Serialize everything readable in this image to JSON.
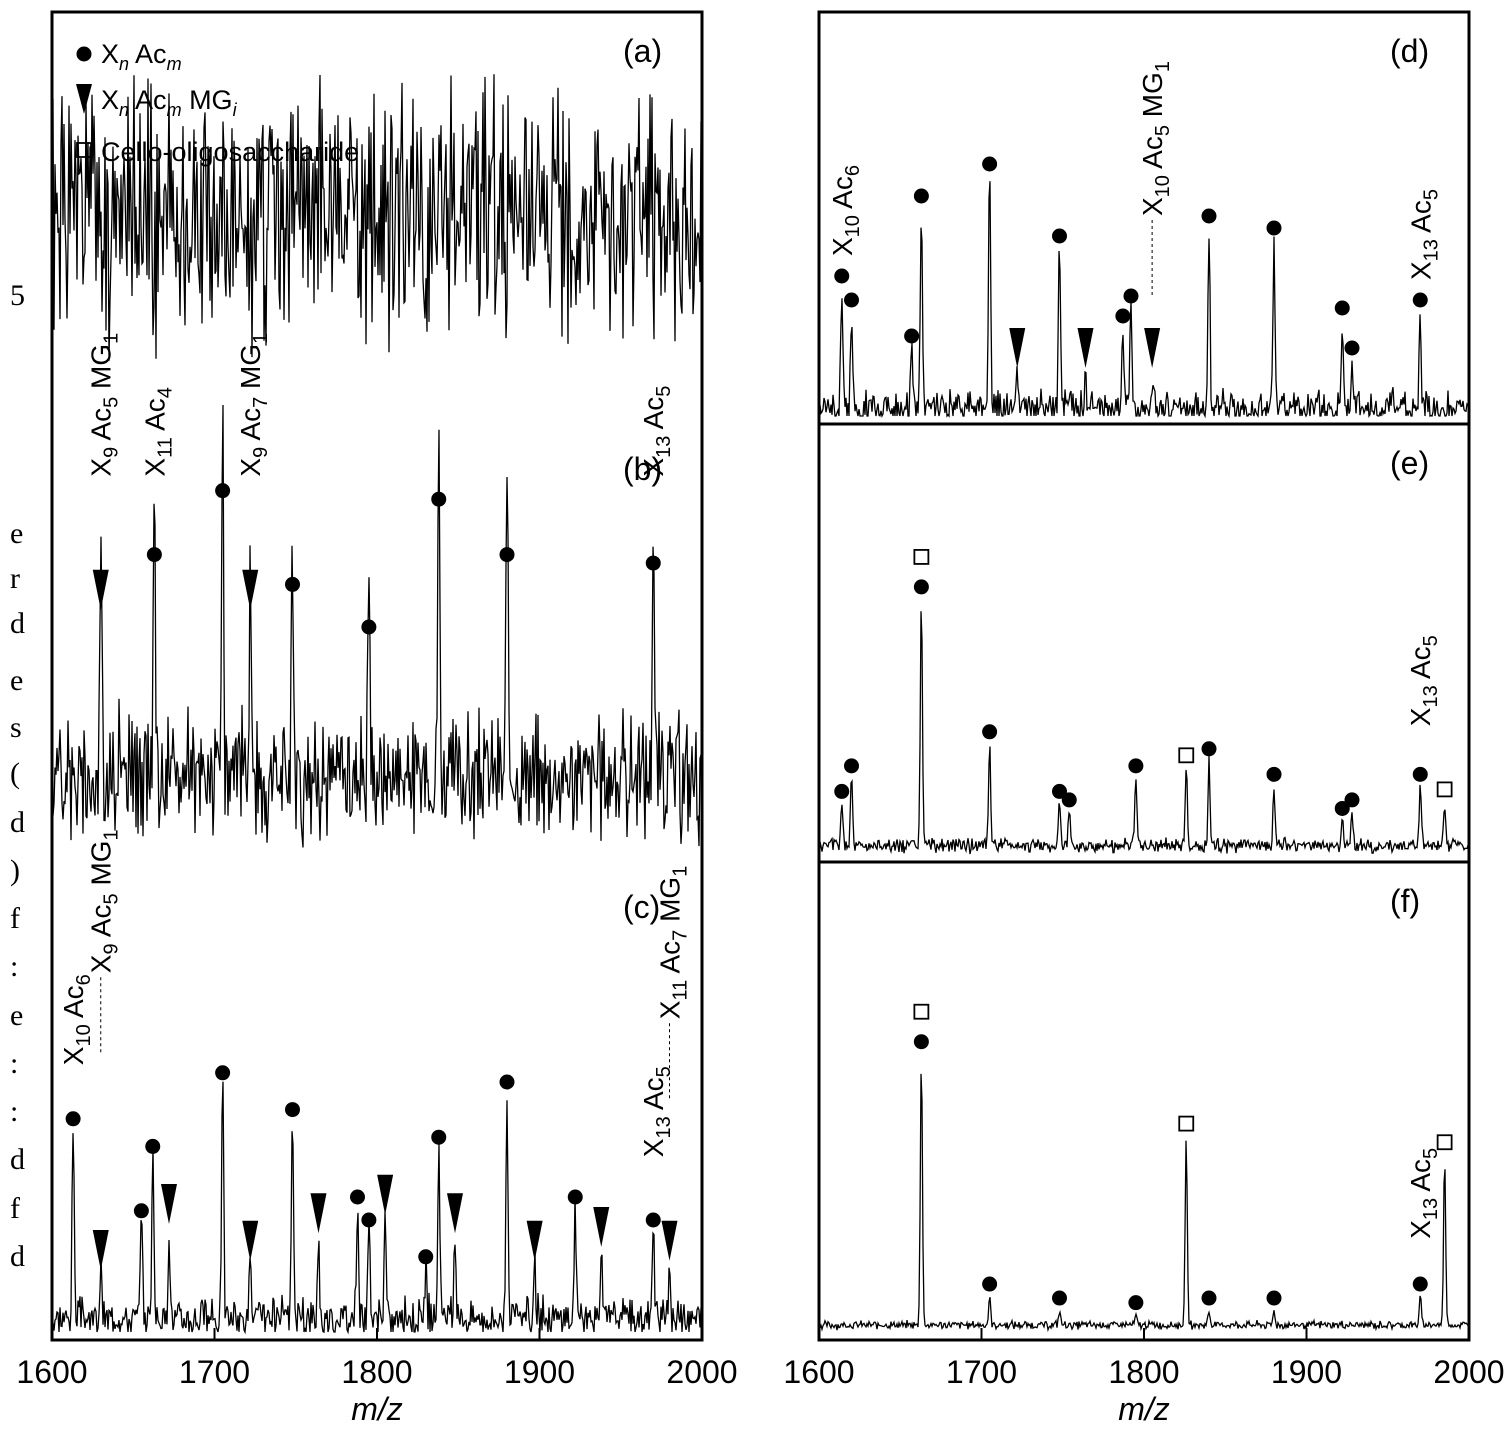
{
  "colors": {
    "ink": "#000000",
    "background": "#ffffff"
  },
  "left_margin_text": [
    "5",
    "e",
    "r",
    "d",
    "e",
    "s",
    "(",
    "d",
    ")",
    "f",
    ":",
    "e",
    ":",
    ":",
    "d",
    "f",
    "d"
  ],
  "legend": [
    {
      "symbol": "circle",
      "base": "X",
      "sub1": "n",
      "mid": " Ac",
      "sub2": "m",
      "tail": "",
      "sub3": ""
    },
    {
      "symbol": "triangle-down",
      "base": "X",
      "sub1": "n",
      "mid": " Ac",
      "sub2": "m",
      "tail": " MG",
      "sub3": "i"
    },
    {
      "symbol": "square-open",
      "text": "Cello-oligosaccharide"
    }
  ],
  "chart_data": [
    {
      "type": "line",
      "panel": "(a)",
      "xlim": [
        1600,
        2000
      ],
      "xticks": [],
      "xlabel": "",
      "noise_seed": 1,
      "noise_level": 0.28,
      "baseline": 0.5,
      "peaks": [],
      "markers": [],
      "labels": []
    },
    {
      "type": "line",
      "panel": "(b)",
      "xlim": [
        1600,
        2000
      ],
      "xticks": [],
      "xlabel": "",
      "noise_seed": 2,
      "noise_level": 0.13,
      "baseline": 0.2,
      "peaks": [
        {
          "x": 1630,
          "h": 0.55
        },
        {
          "x": 1663,
          "h": 0.67
        },
        {
          "x": 1705,
          "h": 0.82
        },
        {
          "x": 1722,
          "h": 0.55
        },
        {
          "x": 1748,
          "h": 0.6
        },
        {
          "x": 1795,
          "h": 0.5
        },
        {
          "x": 1838,
          "h": 0.8
        },
        {
          "x": 1880,
          "h": 0.67
        },
        {
          "x": 1970,
          "h": 0.65
        }
      ],
      "markers": [
        {
          "x": 1663,
          "h": 0.67,
          "type": "circle"
        },
        {
          "x": 1705,
          "h": 0.82,
          "type": "circle"
        },
        {
          "x": 1748,
          "h": 0.6,
          "type": "circle"
        },
        {
          "x": 1795,
          "h": 0.5,
          "type": "circle"
        },
        {
          "x": 1838,
          "h": 0.8,
          "type": "circle"
        },
        {
          "x": 1880,
          "h": 0.67,
          "type": "circle"
        },
        {
          "x": 1970,
          "h": 0.65,
          "type": "circle"
        },
        {
          "x": 1630,
          "h": 0.55,
          "type": "triangle"
        },
        {
          "x": 1722,
          "h": 0.55,
          "type": "triangle"
        }
      ],
      "labels": [
        {
          "x": 1630,
          "h": 0.9,
          "base": "X",
          "s1": "9",
          "mid": " Ac",
          "s2": "5",
          "tail": " MG",
          "s3": "1",
          "line": false
        },
        {
          "x": 1663,
          "h": 0.9,
          "base": "X",
          "s1": "11",
          "mid": " Ac",
          "s2": "4",
          "tail": "",
          "s3": "",
          "line": false
        },
        {
          "x": 1722,
          "h": 0.9,
          "base": "X",
          "s1": "9",
          "mid": " Ac",
          "s2": "7",
          "tail": " MG",
          "s3": "1",
          "line": false
        },
        {
          "x": 1970,
          "h": 0.9,
          "base": "X",
          "s1": "13",
          "mid": " Ac",
          "s2": "5",
          "tail": "",
          "s3": "",
          "line": false
        }
      ]
    },
    {
      "type": "line",
      "panel": "(c)",
      "xlim": [
        1600,
        2000
      ],
      "xticks": [
        1600,
        1700,
        1800,
        1900,
        2000
      ],
      "xlabel": "m/z",
      "noise_seed": 3,
      "noise_level": 0.04,
      "baseline": 0.03,
      "peaks": [
        {
          "x": 1613,
          "h": 0.42
        },
        {
          "x": 1630,
          "h": 0.1
        },
        {
          "x": 1655,
          "h": 0.22
        },
        {
          "x": 1662,
          "h": 0.36
        },
        {
          "x": 1672,
          "h": 0.2
        },
        {
          "x": 1705,
          "h": 0.52
        },
        {
          "x": 1722,
          "h": 0.12
        },
        {
          "x": 1748,
          "h": 0.44
        },
        {
          "x": 1764,
          "h": 0.18
        },
        {
          "x": 1788,
          "h": 0.25
        },
        {
          "x": 1795,
          "h": 0.2
        },
        {
          "x": 1805,
          "h": 0.22
        },
        {
          "x": 1830,
          "h": 0.12
        },
        {
          "x": 1838,
          "h": 0.38
        },
        {
          "x": 1848,
          "h": 0.18
        },
        {
          "x": 1880,
          "h": 0.5
        },
        {
          "x": 1897,
          "h": 0.12
        },
        {
          "x": 1922,
          "h": 0.25
        },
        {
          "x": 1938,
          "h": 0.15
        },
        {
          "x": 1970,
          "h": 0.2
        },
        {
          "x": 1980,
          "h": 0.12
        }
      ],
      "markers": [
        {
          "x": 1613,
          "h": 0.42,
          "type": "circle"
        },
        {
          "x": 1655,
          "h": 0.22,
          "type": "circle"
        },
        {
          "x": 1662,
          "h": 0.36,
          "type": "circle"
        },
        {
          "x": 1705,
          "h": 0.52,
          "type": "circle"
        },
        {
          "x": 1748,
          "h": 0.44,
          "type": "circle"
        },
        {
          "x": 1788,
          "h": 0.25,
          "type": "circle"
        },
        {
          "x": 1795,
          "h": 0.2,
          "type": "circle"
        },
        {
          "x": 1830,
          "h": 0.12,
          "type": "circle"
        },
        {
          "x": 1838,
          "h": 0.38,
          "type": "circle"
        },
        {
          "x": 1880,
          "h": 0.5,
          "type": "circle"
        },
        {
          "x": 1922,
          "h": 0.25,
          "type": "circle"
        },
        {
          "x": 1970,
          "h": 0.2,
          "type": "circle"
        },
        {
          "x": 1630,
          "h": 0.1,
          "type": "triangle"
        },
        {
          "x": 1672,
          "h": 0.2,
          "type": "triangle"
        },
        {
          "x": 1722,
          "h": 0.12,
          "type": "triangle"
        },
        {
          "x": 1764,
          "h": 0.18,
          "type": "triangle"
        },
        {
          "x": 1805,
          "h": 0.22,
          "type": "triangle"
        },
        {
          "x": 1848,
          "h": 0.18,
          "type": "triangle"
        },
        {
          "x": 1897,
          "h": 0.12,
          "type": "triangle"
        },
        {
          "x": 1938,
          "h": 0.15,
          "type": "triangle"
        },
        {
          "x": 1980,
          "h": 0.12,
          "type": "triangle"
        }
      ],
      "labels": [
        {
          "x": 1613,
          "h": 0.58,
          "base": "X",
          "s1": "10",
          "mid": " Ac",
          "s2": "6",
          "tail": "",
          "s3": "",
          "line": false
        },
        {
          "x": 1630,
          "h": 0.78,
          "base": "X",
          "s1": "9",
          "mid": " Ac",
          "s2": "5",
          "tail": " MG",
          "s3": "1",
          "line": true
        },
        {
          "x": 1970,
          "h": 0.38,
          "base": "X",
          "s1": "13",
          "mid": " Ac",
          "s2": "5",
          "tail": "",
          "s3": "",
          "line": false
        },
        {
          "x": 1980,
          "h": 0.68,
          "base": "X",
          "s1": "11",
          "mid": " Ac",
          "s2": "7",
          "tail": " MG",
          "s3": "1",
          "line": true
        }
      ]
    },
    {
      "type": "line",
      "panel": "(d)",
      "xlim": [
        1600,
        2000
      ],
      "xticks": [],
      "xlabel": "",
      "noise_seed": 4,
      "noise_level": 0.04,
      "baseline": 0.02,
      "peaks": [
        {
          "x": 1614,
          "h": 0.3
        },
        {
          "x": 1620,
          "h": 0.24
        },
        {
          "x": 1657,
          "h": 0.15
        },
        {
          "x": 1663,
          "h": 0.5
        },
        {
          "x": 1705,
          "h": 0.58
        },
        {
          "x": 1722,
          "h": 0.08
        },
        {
          "x": 1748,
          "h": 0.4
        },
        {
          "x": 1764,
          "h": 0.08
        },
        {
          "x": 1787,
          "h": 0.2
        },
        {
          "x": 1792,
          "h": 0.25
        },
        {
          "x": 1805,
          "h": 0.08
        },
        {
          "x": 1840,
          "h": 0.45
        },
        {
          "x": 1880,
          "h": 0.42
        },
        {
          "x": 1922,
          "h": 0.22
        },
        {
          "x": 1928,
          "h": 0.12
        },
        {
          "x": 1970,
          "h": 0.24
        }
      ],
      "markers": [
        {
          "x": 1614,
          "h": 0.3,
          "type": "circle"
        },
        {
          "x": 1620,
          "h": 0.24,
          "type": "circle"
        },
        {
          "x": 1657,
          "h": 0.15,
          "type": "circle"
        },
        {
          "x": 1663,
          "h": 0.5,
          "type": "circle"
        },
        {
          "x": 1705,
          "h": 0.58,
          "type": "circle"
        },
        {
          "x": 1748,
          "h": 0.4,
          "type": "circle"
        },
        {
          "x": 1787,
          "h": 0.2,
          "type": "circle"
        },
        {
          "x": 1792,
          "h": 0.25,
          "type": "circle"
        },
        {
          "x": 1840,
          "h": 0.45,
          "type": "circle"
        },
        {
          "x": 1880,
          "h": 0.42,
          "type": "circle"
        },
        {
          "x": 1922,
          "h": 0.22,
          "type": "circle"
        },
        {
          "x": 1928,
          "h": 0.12,
          "type": "circle"
        },
        {
          "x": 1970,
          "h": 0.24,
          "type": "circle"
        },
        {
          "x": 1722,
          "h": 0.08,
          "type": "triangle"
        },
        {
          "x": 1764,
          "h": 0.08,
          "type": "triangle"
        },
        {
          "x": 1805,
          "h": 0.08,
          "type": "triangle"
        }
      ],
      "labels": [
        {
          "x": 1614,
          "h": 0.4,
          "base": "X",
          "s1": "10",
          "mid": " Ac",
          "s2": "6",
          "tail": "",
          "s3": "",
          "line": false
        },
        {
          "x": 1805,
          "h": 0.5,
          "base": "X",
          "s1": "10",
          "mid": " Ac",
          "s2": "5",
          "tail": " MG",
          "s3": "1",
          "line": true
        },
        {
          "x": 1970,
          "h": 0.34,
          "base": "X",
          "s1": "13",
          "mid": " Ac",
          "s2": "5",
          "tail": "",
          "s3": "",
          "line": false
        }
      ]
    },
    {
      "type": "line",
      "panel": "(e)",
      "xlim": [
        1600,
        2000
      ],
      "xticks": [],
      "xlabel": "",
      "noise_seed": 5,
      "noise_level": 0.015,
      "baseline": 0.02,
      "peaks": [
        {
          "x": 1614,
          "h": 0.1
        },
        {
          "x": 1620,
          "h": 0.16
        },
        {
          "x": 1663,
          "h": 0.58
        },
        {
          "x": 1705,
          "h": 0.24
        },
        {
          "x": 1748,
          "h": 0.1
        },
        {
          "x": 1754,
          "h": 0.08
        },
        {
          "x": 1795,
          "h": 0.16
        },
        {
          "x": 1826,
          "h": 0.18
        },
        {
          "x": 1840,
          "h": 0.2
        },
        {
          "x": 1880,
          "h": 0.14
        },
        {
          "x": 1922,
          "h": 0.06
        },
        {
          "x": 1928,
          "h": 0.08
        },
        {
          "x": 1970,
          "h": 0.14
        },
        {
          "x": 1985,
          "h": 0.1
        }
      ],
      "markers": [
        {
          "x": 1614,
          "h": 0.1,
          "type": "circle"
        },
        {
          "x": 1620,
          "h": 0.16,
          "type": "circle"
        },
        {
          "x": 1663,
          "h": 0.58,
          "type": "circle"
        },
        {
          "x": 1705,
          "h": 0.24,
          "type": "circle"
        },
        {
          "x": 1748,
          "h": 0.1,
          "type": "circle"
        },
        {
          "x": 1754,
          "h": 0.08,
          "type": "circle"
        },
        {
          "x": 1795,
          "h": 0.16,
          "type": "circle"
        },
        {
          "x": 1840,
          "h": 0.2,
          "type": "circle"
        },
        {
          "x": 1880,
          "h": 0.14,
          "type": "circle"
        },
        {
          "x": 1922,
          "h": 0.06,
          "type": "circle"
        },
        {
          "x": 1928,
          "h": 0.08,
          "type": "circle"
        },
        {
          "x": 1970,
          "h": 0.14,
          "type": "circle"
        },
        {
          "x": 1663,
          "h": 0.58,
          "type": "square"
        },
        {
          "x": 1826,
          "h": 0.18,
          "type": "square"
        },
        {
          "x": 1985,
          "h": 0.1,
          "type": "square"
        }
      ],
      "labels": [
        {
          "x": 1970,
          "h": 0.3,
          "base": "X",
          "s1": "13",
          "mid": " Ac",
          "s2": "5",
          "tail": "",
          "s3": "",
          "line": false
        }
      ]
    },
    {
      "type": "line",
      "panel": "(f)",
      "xlim": [
        1600,
        2000
      ],
      "xticks": [
        1600,
        1700,
        1800,
        1900,
        2000
      ],
      "xlabel": "m/z",
      "noise_seed": 6,
      "noise_level": 0.008,
      "baseline": 0.015,
      "peaks": [
        {
          "x": 1663,
          "h": 0.58
        },
        {
          "x": 1705,
          "h": 0.06
        },
        {
          "x": 1748,
          "h": 0.03
        },
        {
          "x": 1795,
          "h": 0.02
        },
        {
          "x": 1826,
          "h": 0.4
        },
        {
          "x": 1840,
          "h": 0.03
        },
        {
          "x": 1880,
          "h": 0.03
        },
        {
          "x": 1970,
          "h": 0.06
        },
        {
          "x": 1985,
          "h": 0.36
        }
      ],
      "markers": [
        {
          "x": 1663,
          "h": 0.58,
          "type": "circle"
        },
        {
          "x": 1705,
          "h": 0.06,
          "type": "circle"
        },
        {
          "x": 1748,
          "h": 0.03,
          "type": "circle"
        },
        {
          "x": 1795,
          "h": 0.02,
          "type": "circle"
        },
        {
          "x": 1840,
          "h": 0.03,
          "type": "circle"
        },
        {
          "x": 1880,
          "h": 0.03,
          "type": "circle"
        },
        {
          "x": 1970,
          "h": 0.06,
          "type": "circle"
        },
        {
          "x": 1663,
          "h": 0.58,
          "type": "square"
        },
        {
          "x": 1826,
          "h": 0.4,
          "type": "square"
        },
        {
          "x": 1985,
          "h": 0.36,
          "type": "square"
        }
      ],
      "labels": [
        {
          "x": 1970,
          "h": 0.2,
          "base": "X",
          "s1": "13",
          "mid": " Ac",
          "s2": "5",
          "tail": "",
          "s3": "",
          "line": false
        }
      ]
    }
  ]
}
